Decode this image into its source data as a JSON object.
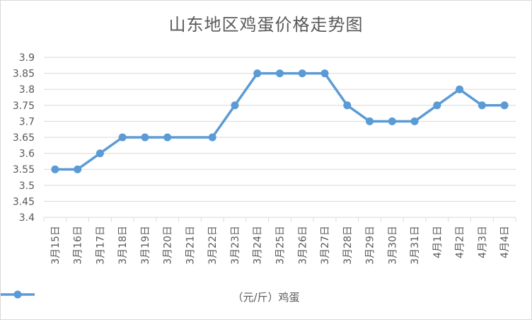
{
  "chart_data": {
    "type": "line",
    "title": "山东地区鸡蛋价格走势图",
    "categories": [
      "3月15日",
      "3月16日",
      "3月17日",
      "3月18日",
      "3月19日",
      "3月20日",
      "3月21日",
      "3月22日",
      "3月23日",
      "3月24日",
      "3月25日",
      "3月26日",
      "3月27日",
      "3月28日",
      "3月29日",
      "3月30日",
      "3月31日",
      "4月1日",
      "4月2日",
      "4月3日",
      "4月4日"
    ],
    "series": [
      {
        "name": "（元/斤）鸡蛋",
        "values": [
          3.55,
          3.55,
          3.6,
          3.65,
          3.65,
          3.65,
          null,
          3.65,
          3.75,
          3.85,
          3.85,
          3.85,
          3.85,
          3.75,
          3.7,
          3.7,
          3.7,
          3.75,
          3.8,
          3.75,
          3.75
        ],
        "color": "#5b9bd5"
      }
    ],
    "yticks": [
      "3.4",
      "3.45",
      "3.5",
      "3.55",
      "3.6",
      "3.65",
      "3.7",
      "3.75",
      "3.8",
      "3.85",
      "3.9"
    ],
    "ylim": [
      3.4,
      3.9
    ],
    "grid": true,
    "legend": "bottom"
  }
}
